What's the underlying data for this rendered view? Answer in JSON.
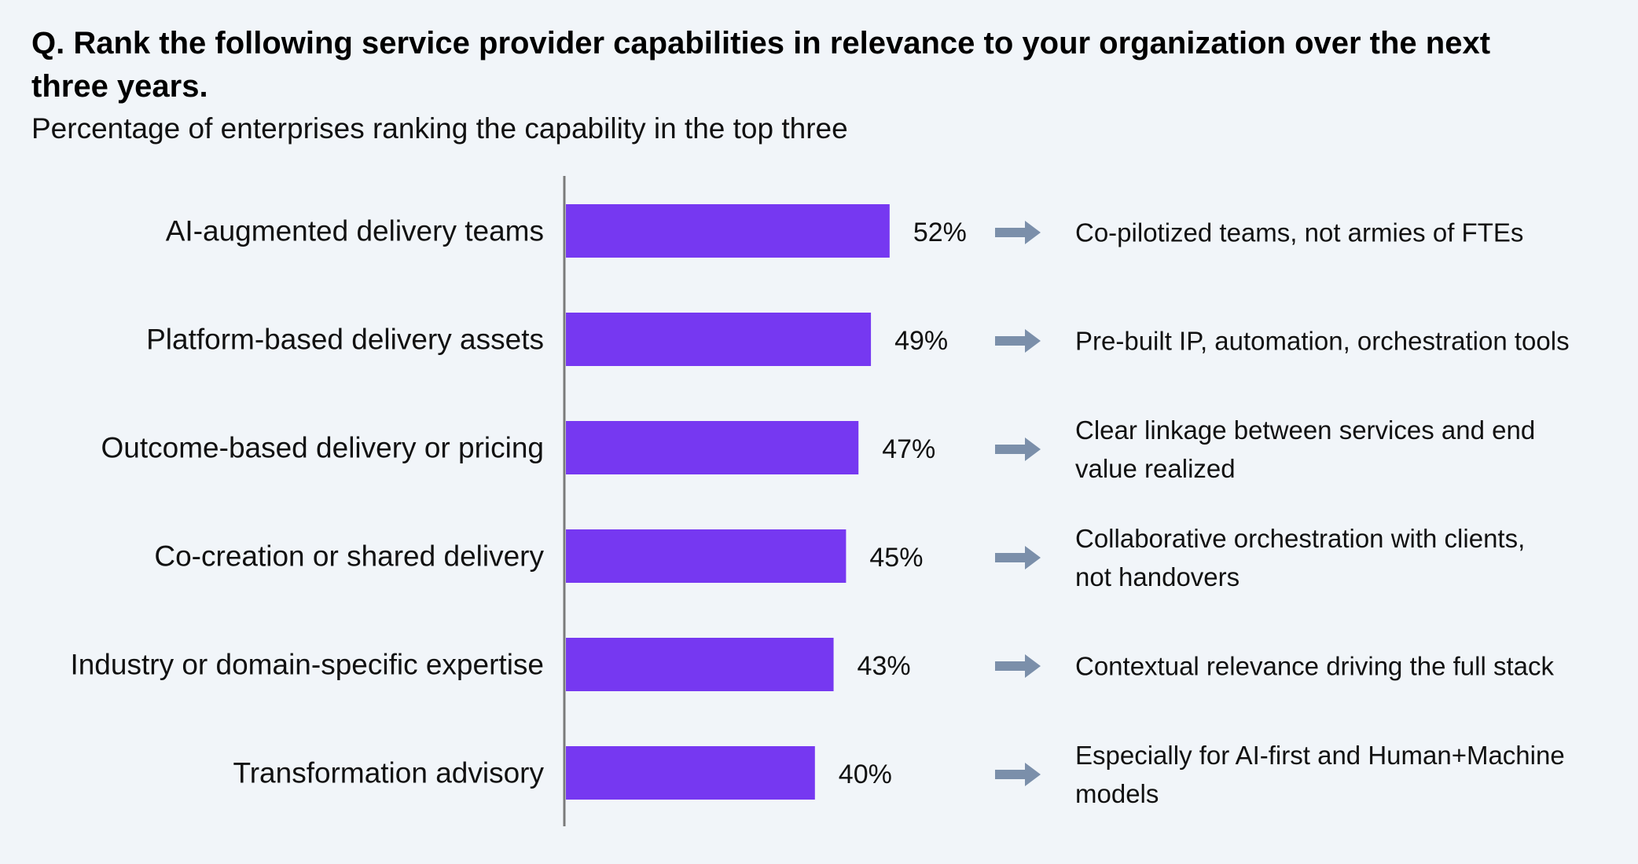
{
  "title": "Q. Rank the following service provider capabilities in relevance to your organization over the next three years.",
  "subtitle": "Percentage of enterprises ranking the capability in the top three",
  "colors": {
    "bar": "#7638f1",
    "arrow": "#7b8faa",
    "axis": "#7a7a7a",
    "background": "#f1f5f9"
  },
  "chart_data": {
    "type": "bar",
    "orientation": "horizontal",
    "categories": [
      "AI-augmented delivery teams",
      "Platform-based delivery assets",
      "Outcome-based delivery or pricing",
      "Co-creation or shared delivery",
      "Industry or domain-specific expertise",
      "Transformation advisory"
    ],
    "values": [
      52,
      49,
      47,
      45,
      43,
      40
    ],
    "data_labels": [
      "52%",
      "49%",
      "47%",
      "45%",
      "43%",
      "40%"
    ],
    "unit": "%",
    "xlim": [
      0,
      100
    ],
    "grid": false,
    "legend": "none",
    "annotations": [
      [
        "Co-pilotized teams, not armies of FTEs"
      ],
      [
        "Pre-built IP, automation, orchestration tools"
      ],
      [
        "Clear linkage between services and end",
        "value realized"
      ],
      [
        "Collaborative orchestration with clients,",
        "not handovers"
      ],
      [
        "Contextual relevance driving the full stack"
      ],
      [
        "Especially for AI-first and Human+Machine",
        "models"
      ]
    ]
  }
}
